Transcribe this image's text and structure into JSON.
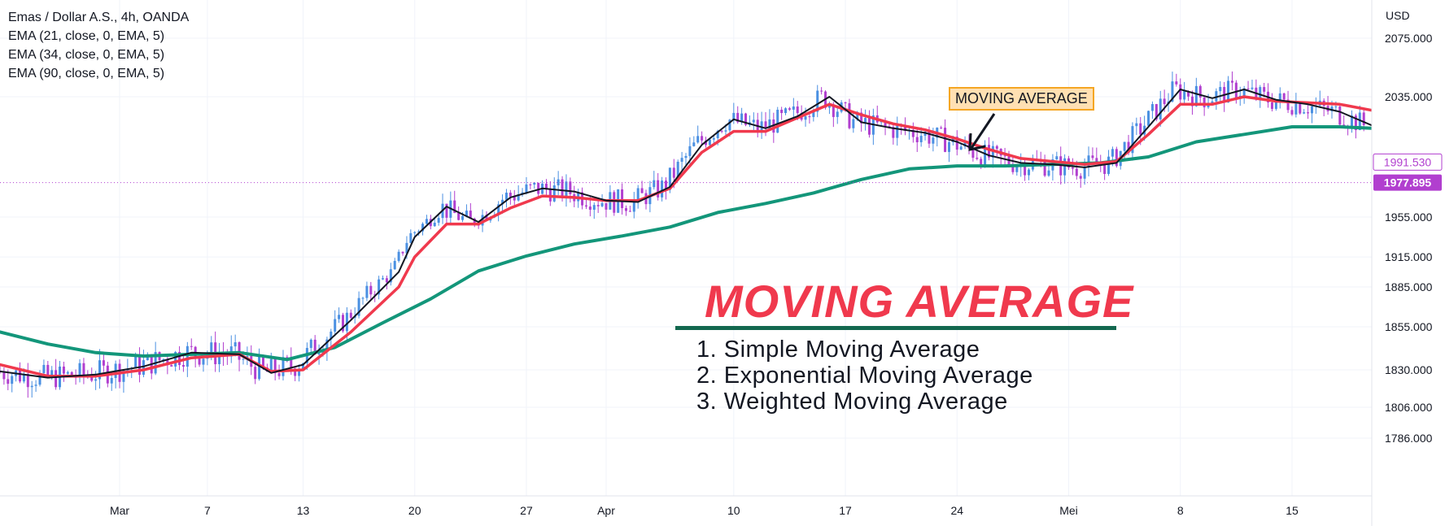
{
  "legend": {
    "symbol": "Emas / Dollar A.S., 4h, OANDA",
    "ema1": "EMA (21, close, 0, EMA, 5)",
    "ema2": "EMA (34, close, 0, EMA, 5)",
    "ema3": "EMA (90, close, 0, EMA, 5)"
  },
  "overlay": {
    "title": "MOVING AVERAGE",
    "items": [
      "1. Simple Moving Average",
      "2. Exponential Moving Average",
      "3. Weighted Moving Average"
    ],
    "callout": "MOVING AVERAGE"
  },
  "colors": {
    "up": "#4a90e2",
    "down": "#b13fcf",
    "ema21": "#131722",
    "ema34": "#f0394d",
    "ema90": "#13967a",
    "title": "#f0394d",
    "rule": "#13684f",
    "price_label": "#b13fcf"
  },
  "chart_data": {
    "type": "line",
    "currency": "USD",
    "y_ticks": [
      "2075.000",
      "2035.000",
      "1955.000",
      "1915.000",
      "1885.000",
      "1855.000",
      "1830.000",
      "1806.000",
      "1786.000"
    ],
    "y_tick_values": [
      2075,
      2035,
      1955,
      1915,
      1885,
      1855,
      1830,
      1806,
      1786
    ],
    "x_ticks": [
      "Mar",
      "7",
      "13",
      "20",
      "27",
      "Apr",
      "10",
      "17",
      "24",
      "Mei",
      "8",
      "15"
    ],
    "x_tick_positions": [
      0.5,
      6,
      12,
      19,
      26,
      31,
      39,
      46,
      53,
      60,
      67,
      74
    ],
    "x_range": [
      -7,
      79
    ],
    "price_labels": {
      "upper": "1991.530",
      "lower": "1977.895"
    },
    "price_levels": {
      "upper": 1991.53,
      "lower": 1977.895
    },
    "series": [
      {
        "name": "EMA (21, close, 0, EMA, 5)",
        "x": [
          -7,
          -4,
          -1,
          2,
          5,
          8,
          10,
          12,
          15,
          18,
          19,
          21,
          23,
          25,
          27,
          29,
          31,
          33,
          35,
          37,
          39,
          41,
          43,
          45,
          47,
          49,
          51,
          53,
          55,
          57,
          59,
          61,
          63,
          65,
          67,
          69,
          71,
          73,
          75,
          77,
          79
        ],
        "y": [
          1829,
          1825,
          1827,
          1832,
          1840,
          1839,
          1828,
          1833,
          1860,
          1900,
          1935,
          1962,
          1950,
          1968,
          1974,
          1972,
          1966,
          1965,
          1975,
          2003,
          2020,
          2014,
          2022,
          2035,
          2018,
          2014,
          2011,
          2005,
          1996,
          1991,
          1990,
          1988,
          1991,
          2015,
          2040,
          2034,
          2040,
          2033,
          2030,
          2025,
          2016
        ]
      },
      {
        "name": "EMA (34, close, 0, EMA, 5)",
        "x": [
          -7,
          -4,
          -1,
          2,
          5,
          8,
          10,
          12,
          15,
          18,
          19,
          21,
          23,
          25,
          27,
          29,
          31,
          33,
          35,
          37,
          39,
          41,
          43,
          45,
          47,
          49,
          51,
          53,
          55,
          57,
          59,
          61,
          63,
          65,
          67,
          69,
          71,
          73,
          75,
          77,
          79
        ],
        "y": [
          1833,
          1826,
          1826,
          1830,
          1837,
          1839,
          1829,
          1830,
          1852,
          1885,
          1915,
          1948,
          1948,
          1961,
          1969,
          1968,
          1966,
          1966,
          1974,
          1998,
          2012,
          2012,
          2021,
          2030,
          2023,
          2017,
          2013,
          2007,
          2000,
          1994,
          1992,
          1990,
          1992,
          2010,
          2030,
          2030,
          2035,
          2032,
          2031,
          2030,
          2026
        ]
      },
      {
        "name": "EMA (90, close, 0, EMA, 5)",
        "x": [
          -7,
          -4,
          -1,
          2,
          5,
          8,
          11,
          14,
          17,
          20,
          23,
          26,
          29,
          32,
          35,
          38,
          41,
          44,
          47,
          50,
          53,
          56,
          59,
          62,
          65,
          68,
          71,
          74,
          77,
          79
        ],
        "y": [
          1852,
          1845,
          1840,
          1838,
          1839,
          1840,
          1836,
          1843,
          1858,
          1876,
          1901,
          1916,
          1928,
          1936,
          1945,
          1958,
          1964,
          1971,
          1980,
          1987,
          1989,
          1989,
          1990,
          1991,
          1995,
          2005,
          2010,
          2015,
          2015,
          2014
        ]
      }
    ]
  }
}
